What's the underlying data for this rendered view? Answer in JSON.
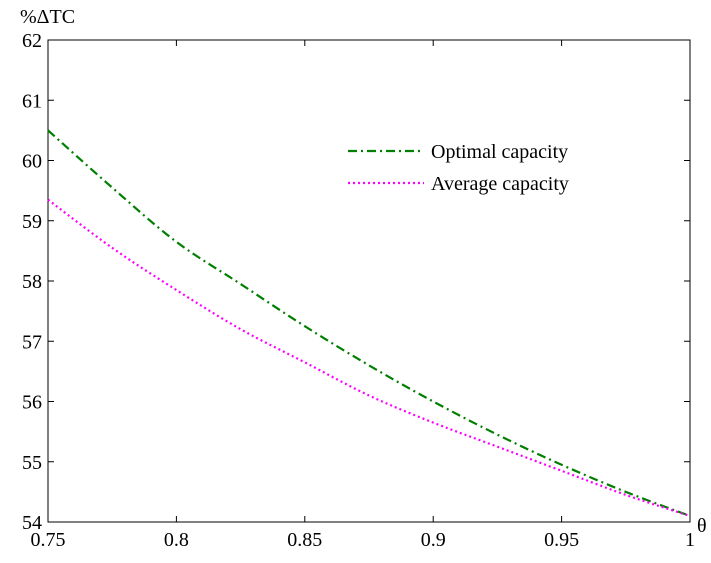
{
  "chart_data": {
    "type": "line",
    "title": "",
    "xlabel": "θ",
    "ylabel": "%ΔTC",
    "xlim": [
      0.75,
      1.0
    ],
    "ylim": [
      54,
      62
    ],
    "xticks": [
      0.75,
      0.8,
      0.85,
      0.9,
      0.95,
      1.0
    ],
    "xtick_labels": [
      "0.75",
      "0.8",
      "0.85",
      "0.9",
      "0.95",
      "1"
    ],
    "yticks": [
      54,
      55,
      56,
      57,
      58,
      59,
      60,
      61,
      62
    ],
    "ytick_labels": [
      "54",
      "55",
      "56",
      "57",
      "58",
      "59",
      "60",
      "61",
      "62"
    ],
    "grid": false,
    "legend_position": "top-right",
    "series": [
      {
        "name": "Optimal capacity",
        "color": "#007f00",
        "style": "dash-dot",
        "x": [
          0.75,
          0.775,
          0.8,
          0.825,
          0.85,
          0.875,
          0.9,
          0.925,
          0.95,
          0.975,
          1.0
        ],
        "y": [
          60.5,
          59.55,
          58.65,
          57.95,
          57.25,
          56.6,
          56.0,
          55.45,
          54.95,
          54.5,
          54.1
        ]
      },
      {
        "name": "Average capacity",
        "color": "#ff00ff",
        "style": "dotted",
        "x": [
          0.75,
          0.775,
          0.8,
          0.825,
          0.85,
          0.875,
          0.9,
          0.925,
          0.95,
          0.975,
          1.0
        ],
        "y": [
          59.35,
          58.55,
          57.85,
          57.2,
          56.65,
          56.1,
          55.65,
          55.25,
          54.85,
          54.45,
          54.1
        ]
      }
    ]
  }
}
